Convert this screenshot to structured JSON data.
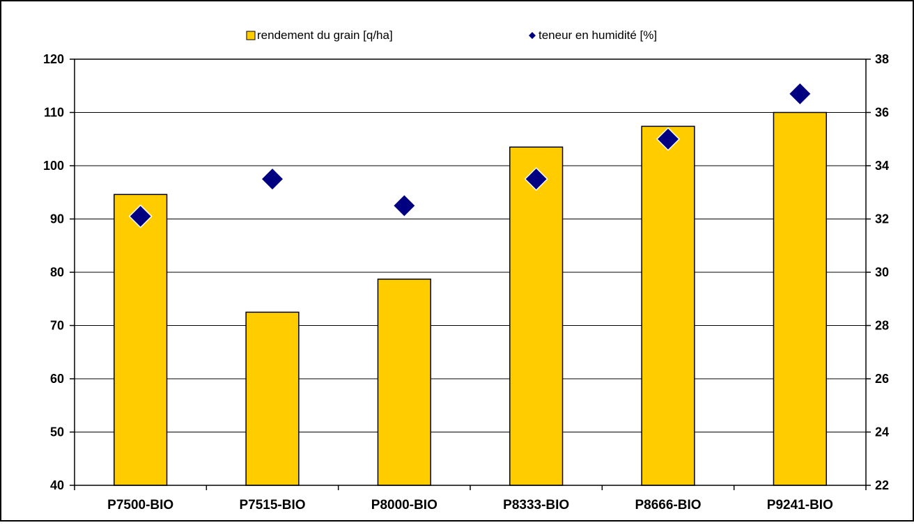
{
  "chart_data": {
    "type": "bar",
    "categories": [
      "P7500-BIO",
      "P7515-BIO",
      "P8000-BIO",
      "P8333-BIO",
      "P8666-BIO",
      "P9241-BIO"
    ],
    "series": [
      {
        "name": "rendement du grain [q/ha]",
        "type": "bar",
        "axis": "left",
        "values": [
          94.6,
          72.5,
          78.7,
          103.5,
          107.4,
          110.0
        ],
        "color": "#FFCC00"
      },
      {
        "name": "teneur en humidité [%]",
        "type": "scatter",
        "marker": "diamond",
        "axis": "right",
        "values": [
          32.1,
          33.5,
          32.5,
          33.5,
          35.0,
          36.7
        ],
        "color": "#000080"
      }
    ],
    "y_left": {
      "min": 40,
      "max": 120,
      "step": 10,
      "ticks": [
        "40",
        "50",
        "60",
        "70",
        "80",
        "90",
        "100",
        "110",
        "120"
      ]
    },
    "y_right": {
      "min": 22,
      "max": 38,
      "step": 2,
      "ticks": [
        "22",
        "24",
        "26",
        "28",
        "30",
        "32",
        "34",
        "36",
        "38"
      ]
    },
    "grid": true,
    "legend_position": "top-center",
    "title": "",
    "xlabel": "",
    "ylabel": ""
  }
}
